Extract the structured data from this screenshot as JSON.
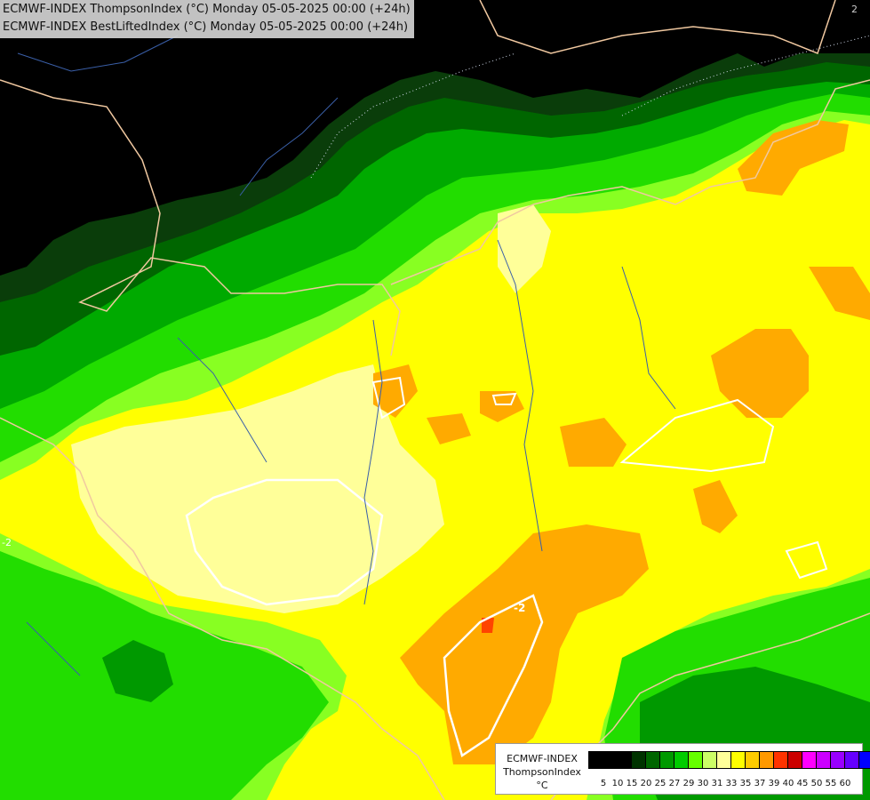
{
  "header": {
    "line1": "ECMWF-INDEX ThompsonIndex (°C) Monday 05-05-2025 00:00 (+24h)",
    "line2": "ECMWF-INDEX BestLiftedIndex (°C) Monday 05-05-2025 00:00 (+24h)"
  },
  "map": {
    "corner_label": "2",
    "contour_labels": [
      "-2",
      "-2"
    ]
  },
  "legend": {
    "model": "ECMWF-INDEX",
    "field": "ThompsonIndex",
    "unit": "°C",
    "ticks": [
      "5",
      "10",
      "15",
      "20",
      "25",
      "27",
      "29",
      "30",
      "31",
      "33",
      "35",
      "37",
      "39",
      "40",
      "45",
      "50",
      "55",
      "60"
    ],
    "colors": [
      "#000000",
      "#000000",
      "#000000",
      "#003300",
      "#006600",
      "#009900",
      "#00cc00",
      "#66ff00",
      "#ccff66",
      "#ffff99",
      "#ffff00",
      "#ffcc00",
      "#ff9900",
      "#ff3300",
      "#cc0000",
      "#ff00ff",
      "#cc00ff",
      "#9900ff",
      "#6600ff",
      "#0000ff"
    ]
  }
}
